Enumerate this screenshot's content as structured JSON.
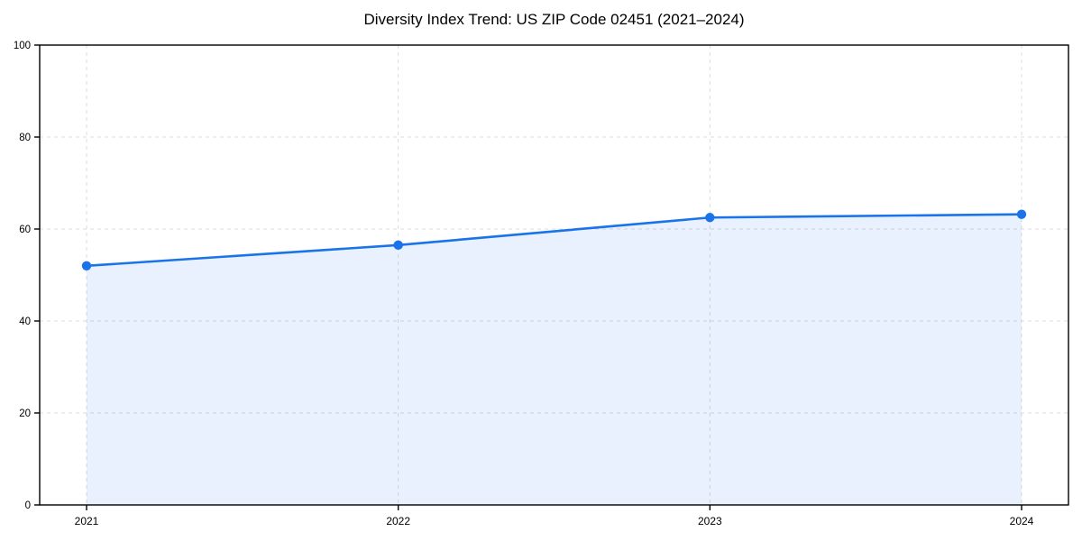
{
  "page": {
    "background": "#ffffff"
  },
  "chart_data": {
    "type": "area",
    "title": "Diversity Index Trend: US ZIP Code 02451 (2021–2024)",
    "categories": [
      "2021",
      "2022",
      "2023",
      "2024"
    ],
    "values": [
      52,
      56.5,
      62.5,
      63.2
    ],
    "series": [
      {
        "name": "Diversity Index",
        "values": [
          52,
          56.5,
          62.5,
          63.2
        ]
      }
    ],
    "xlabel": "",
    "ylabel": "",
    "ylim": [
      0,
      100
    ],
    "yticks": [
      0,
      20,
      40,
      60,
      80,
      100
    ],
    "ytick_labels": [
      "0",
      "20",
      "40",
      "60",
      "80",
      "100"
    ],
    "grid": true,
    "grid_style": "dashed",
    "legend_position": "none",
    "marker": "circle",
    "colors": {
      "line": "#1a73e8",
      "marker": "#1a73e8",
      "fill": "rgba(26,115,232,0.10)",
      "grid": "#dcdcdc",
      "axis": "#000000",
      "text": "#000000"
    }
  }
}
